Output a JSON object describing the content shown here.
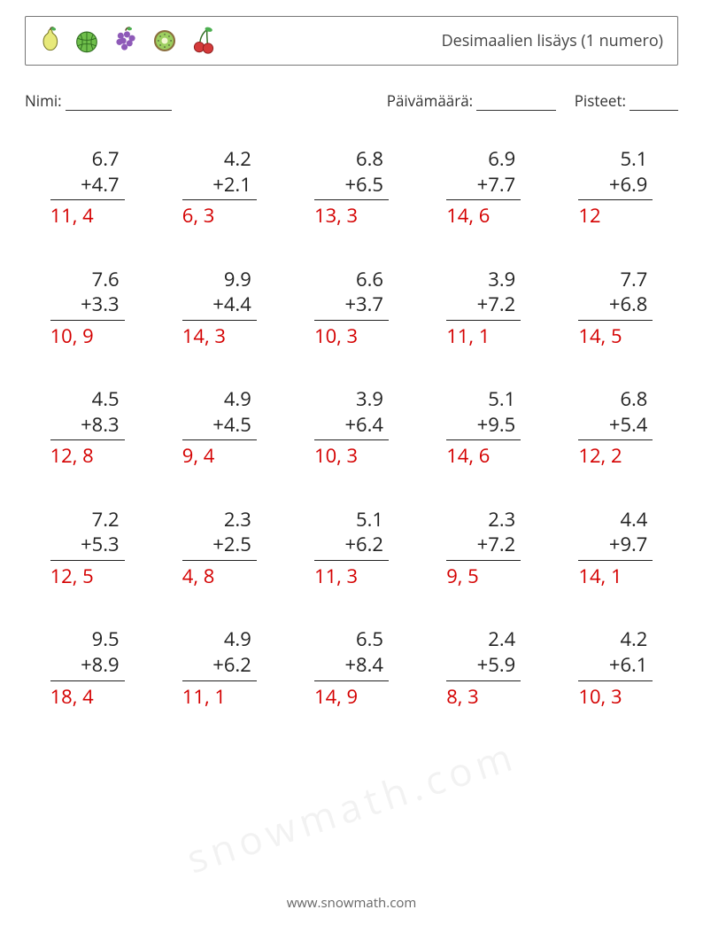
{
  "header": {
    "title": "Desimaalien lisäys (1 numero)",
    "fruit_icons": [
      "pear",
      "melon",
      "grapes",
      "kiwi",
      "cherry"
    ]
  },
  "meta": {
    "name_label": "Nimi:",
    "name_line_width": 120,
    "date_label": "Päivämäärä:",
    "date_line_width": 90,
    "score_label": "Pisteet:",
    "score_line_width": 55,
    "gap_after_name": 260
  },
  "style": {
    "text_color": "#333333",
    "answer_color": "#d40000",
    "border_color": "#777777",
    "bar_color": "#222222",
    "num_fontsize": 22,
    "ans_fontsize": 22,
    "title_fontsize": 18,
    "meta_fontsize": 17,
    "footer_fontsize": 15,
    "background": "#ffffff"
  },
  "grid": {
    "cols": 5,
    "rows": 5
  },
  "problems": [
    {
      "a": "6.7",
      "b": "+4.7",
      "ans": "11, 4"
    },
    {
      "a": "4.2",
      "b": "+2.1",
      "ans": "6, 3"
    },
    {
      "a": "6.8",
      "b": "+6.5",
      "ans": "13, 3"
    },
    {
      "a": "6.9",
      "b": "+7.7",
      "ans": "14, 6"
    },
    {
      "a": "5.1",
      "b": "+6.9",
      "ans": "12"
    },
    {
      "a": "7.6",
      "b": "+3.3",
      "ans": "10, 9"
    },
    {
      "a": "9.9",
      "b": "+4.4",
      "ans": "14, 3"
    },
    {
      "a": "6.6",
      "b": "+3.7",
      "ans": "10, 3"
    },
    {
      "a": "3.9",
      "b": "+7.2",
      "ans": "11, 1"
    },
    {
      "a": "7.7",
      "b": "+6.8",
      "ans": "14, 5"
    },
    {
      "a": "4.5",
      "b": "+8.3",
      "ans": "12, 8"
    },
    {
      "a": "4.9",
      "b": "+4.5",
      "ans": "9, 4"
    },
    {
      "a": "3.9",
      "b": "+6.4",
      "ans": "10, 3"
    },
    {
      "a": "5.1",
      "b": "+9.5",
      "ans": "14, 6"
    },
    {
      "a": "6.8",
      "b": "+5.4",
      "ans": "12, 2"
    },
    {
      "a": "7.2",
      "b": "+5.3",
      "ans": "12, 5"
    },
    {
      "a": "2.3",
      "b": "+2.5",
      "ans": "4, 8"
    },
    {
      "a": "5.1",
      "b": "+6.2",
      "ans": "11, 3"
    },
    {
      "a": "2.3",
      "b": "+7.2",
      "ans": "9, 5"
    },
    {
      "a": "4.4",
      "b": "+9.7",
      "ans": "14, 1"
    },
    {
      "a": "9.5",
      "b": "+8.9",
      "ans": "18, 4"
    },
    {
      "a": "4.9",
      "b": "+6.2",
      "ans": "11, 1"
    },
    {
      "a": "6.5",
      "b": "+8.4",
      "ans": "14, 9"
    },
    {
      "a": "2.4",
      "b": "+5.9",
      "ans": "8, 3"
    },
    {
      "a": "4.2",
      "b": "+6.1",
      "ans": "10, 3"
    }
  ],
  "footer": {
    "text": "www.snowmath.com"
  },
  "watermark": "snowmath.com"
}
